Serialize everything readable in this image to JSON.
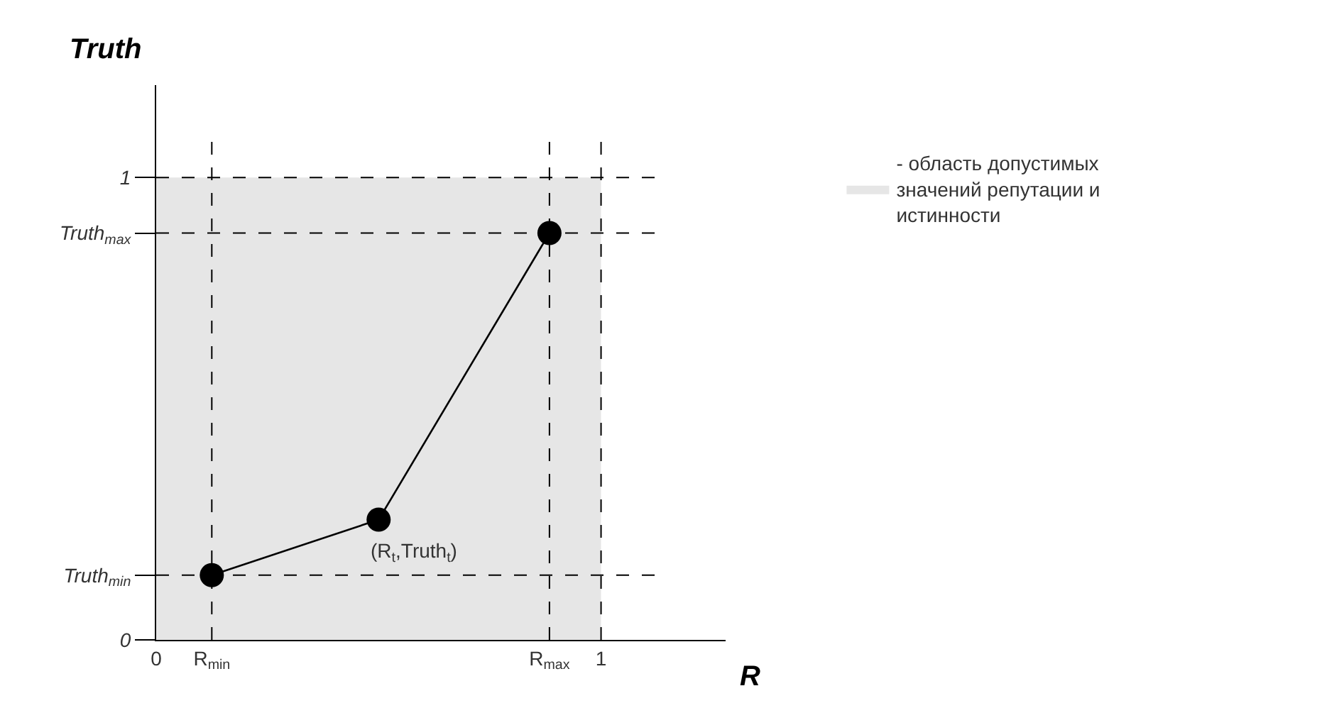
{
  "chart_data": {
    "type": "line",
    "xlabel": "R",
    "ylabel": "Truth",
    "series": [
      {
        "type": "area",
        "name": "- область допустимых значений репутации и истинности",
        "color": "#e6e6e6",
        "x": [
          0,
          1
        ],
        "values": [
          1,
          1
        ],
        "marker": "none"
      },
      {
        "color": "#000000",
        "x": [
          0.125,
          0.5,
          0.884
        ],
        "values": [
          0.14,
          0.26,
          0.88
        ],
        "marker": "circle"
      }
    ],
    "xlim": [
      0,
      1.28
    ],
    "ylim": [
      0,
      1.2
    ],
    "xticks": [
      0,
      {
        "value": 0.125,
        "label": "R$_{min}$"
      },
      {
        "value": 0.884,
        "label": "R$_{max}$"
      },
      1
    ],
    "yticks": [
      0,
      {
        "value": 0.14,
        "label": "Truth$_{min}$"
      },
      {
        "value": 0.88,
        "label": "Truth$_{max}$"
      },
      1
    ],
    "ref_lines": [
      {
        "axis": "x",
        "value": 1,
        "line_style": "dashed",
        "color": "#000000"
      },
      {
        "axis": "y",
        "value": 1,
        "line_style": "dashed",
        "color": "#000000"
      },
      {
        "axis": "x",
        "value": 0.125,
        "line_style": "dashed",
        "color": "#000000"
      },
      {
        "axis": "x",
        "value": 0.884,
        "line_style": "dashed",
        "color": "#000000"
      },
      {
        "axis": "y",
        "value": 0.14,
        "line_style": "dashed",
        "color": "#000000"
      },
      {
        "axis": "y",
        "value": 0.88,
        "line_style": "dashed",
        "color": "#000000"
      }
    ],
    "annotations": [
      {
        "text": "(R$_{t}$,Truth$_{t}$)",
        "x": 0.5,
        "y": 0.26
      }
    ],
    "legend": "right"
  }
}
